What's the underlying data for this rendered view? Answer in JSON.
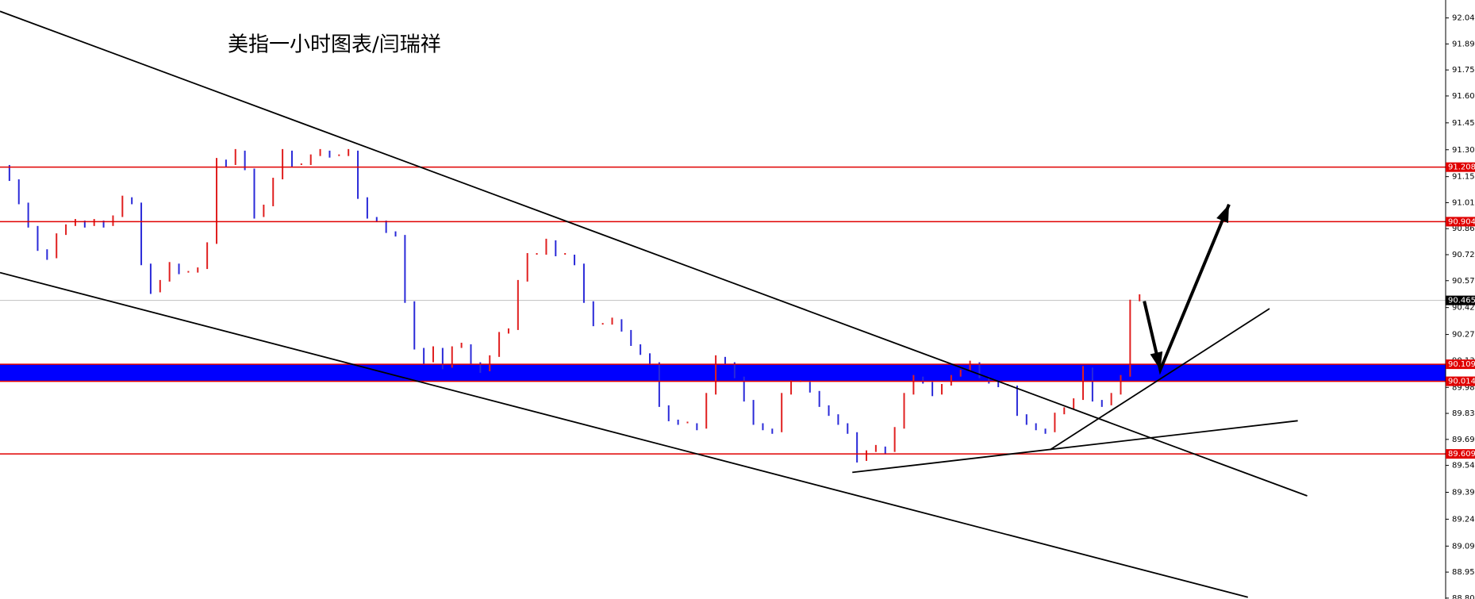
{
  "chart_data": {
    "type": "bar",
    "title": "美指一小时图表/闫瑞祥",
    "up_color": "#e02020",
    "down_color": "#2a2ad8",
    "values": [
      91.22,
      91.14,
      91.01,
      90.88,
      90.75,
      90.7,
      90.83,
      90.88,
      90.91,
      90.88,
      90.91,
      90.88,
      90.93,
      91.04,
      91.01,
      90.67,
      90.51,
      90.57,
      90.67,
      90.62,
      90.62,
      90.64,
      90.78,
      91.25,
      91.22,
      91.3,
      91.2,
      90.93,
      90.99,
      91.14,
      91.3,
      91.22,
      91.22,
      91.27,
      91.3,
      91.27,
      91.27,
      91.3,
      91.04,
      90.93,
      90.91,
      90.85,
      90.83,
      90.46,
      90.2,
      90.12,
      90.2,
      90.09,
      90.2,
      90.22,
      90.12,
      90.07,
      90.15,
      90.28,
      90.3,
      90.57,
      90.72,
      90.72,
      90.8,
      90.72,
      90.72,
      90.67,
      90.46,
      90.33,
      90.33,
      90.36,
      90.3,
      90.22,
      90.17,
      90.12,
      89.88,
      89.8,
      89.78,
      89.78,
      89.75,
      89.94,
      90.15,
      90.12,
      90.04,
      89.91,
      89.78,
      89.75,
      89.73,
      89.94,
      90.01,
      90.01,
      89.96,
      89.88,
      89.83,
      89.78,
      89.73,
      89.57,
      89.62,
      89.65,
      89.62,
      89.75,
      89.94,
      90.04,
      90.01,
      89.94,
      89.99,
      90.04,
      90.07,
      90.12,
      90.04,
      90.01,
      89.99,
      89.99,
      89.83,
      89.78,
      89.75,
      89.73,
      89.83,
      89.86,
      89.91,
      90.09,
      89.91,
      89.88,
      89.94,
      90.04,
      90.46,
      90.49
    ],
    "xlim": [
      0,
      153.5
    ],
    "ylim": [
      88.8,
      92.14
    ],
    "yticks": [
      {
        "value": 92.04,
        "label": "92.040"
      },
      91.895,
      {
        "value": 91.75,
        "label": "91.750"
      },
      91.605,
      91.455,
      91.305,
      91.155,
      {
        "value": 91.01,
        "label": "91.010"
      },
      90.865,
      {
        "value": 90.72,
        "label": "90.720"
      },
      90.575,
      90.425,
      90.275,
      {
        "value": 90.13,
        "label": "90.130"
      },
      {
        "value": 89.98,
        "label": "89.980"
      },
      89.835,
      {
        "value": 89.69,
        "label": "89.690"
      },
      89.545,
      89.395,
      89.245,
      89.095,
      {
        "value": 88.95,
        "label": "88.950"
      },
      88.805
    ],
    "levels": [
      91.208,
      90.904,
      90.109,
      90.014,
      89.609
    ],
    "level_color": "#e00000",
    "band": [
      90.014,
      90.109
    ],
    "band_color": "#0000ff",
    "current_price": 90.465,
    "trendlines": [
      {
        "x": [
          0,
          138.8
        ],
        "y": [
          92.077,
          89.375
        ]
      },
      {
        "x": [
          0,
          132.5
        ],
        "y": [
          90.62,
          88.81
        ]
      },
      {
        "x": [
          90.5,
          137.8
        ],
        "y": [
          89.506,
          89.794
        ]
      },
      {
        "x": [
          111.5,
          134.8
        ],
        "y": [
          89.632,
          90.419
        ]
      }
    ],
    "arrow": {
      "x": [
        121.5,
        123.2,
        130.5
      ],
      "y": [
        90.461,
        90.078,
        91.0
      ]
    }
  }
}
